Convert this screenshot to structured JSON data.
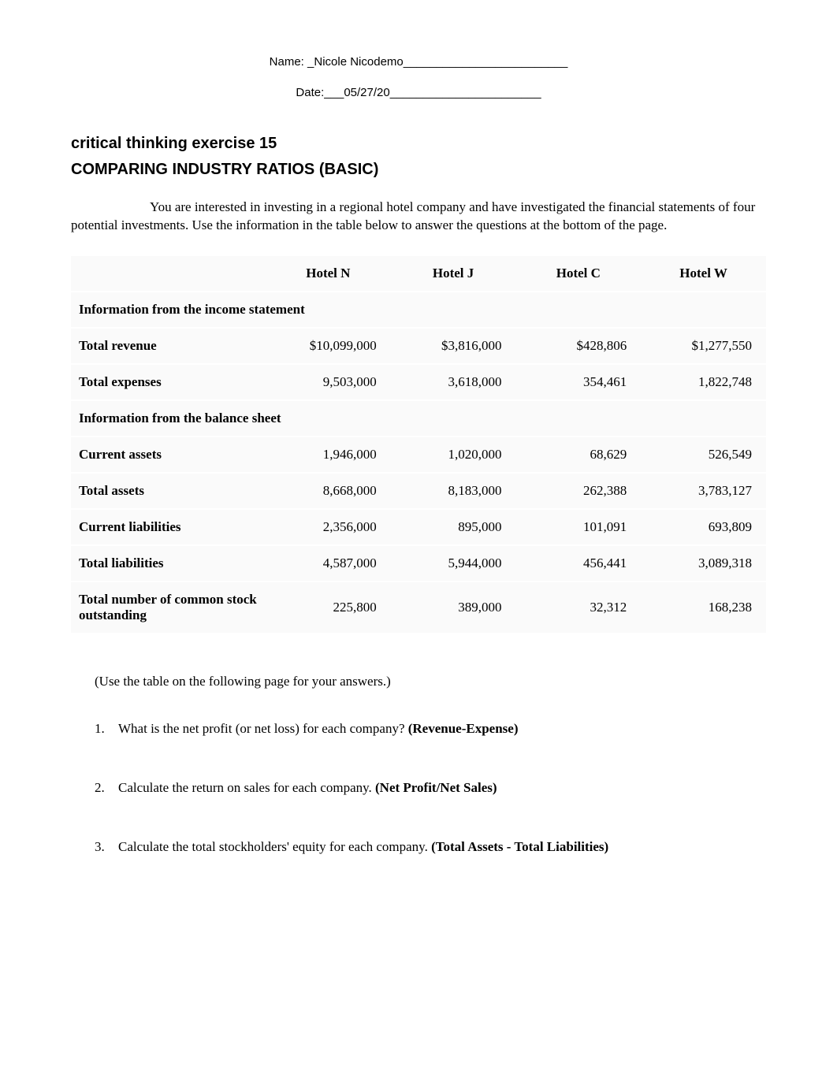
{
  "header": {
    "name_label": "Name: ",
    "name_value": "_Nicole Nicodemo_________________________",
    "date_label": "Date:___",
    "date_value": "05/27/20_______________________"
  },
  "title": {
    "line1": "critical thinking exercise 15",
    "line2": "COMPARING INDUSTRY RATIOS (BASIC)"
  },
  "intro": "You are interested in investing in a regional hotel company and have investigated the financial statements of four potential investments. Use the information in the table below to answer the questions at the bottom of the page.",
  "table": {
    "columns": [
      "Hotel N",
      "Hotel J",
      "Hotel C",
      "Hotel W"
    ],
    "section1_header": "Information from the income statement",
    "section2_header": "Information from the balance sheet",
    "rows": [
      {
        "label": "Total revenue",
        "values": [
          "$10,099,000",
          "$3,816,000",
          "$428,806",
          "$1,277,550"
        ]
      },
      {
        "label": "Total expenses",
        "values": [
          "9,503,000",
          "3,618,000",
          "354,461",
          "1,822,748"
        ]
      }
    ],
    "rows2": [
      {
        "label": "Current assets",
        "values": [
          "1,946,000",
          "1,020,000",
          "68,629",
          "526,549"
        ]
      },
      {
        "label": "Total assets",
        "values": [
          "8,668,000",
          "8,183,000",
          "262,388",
          "3,783,127"
        ]
      },
      {
        "label": "Current liabilities",
        "values": [
          "2,356,000",
          "895,000",
          "101,091",
          "693,809"
        ]
      },
      {
        "label": "Total liabilities",
        "values": [
          "4,587,000",
          "5,944,000",
          "456,441",
          "3,089,318"
        ]
      },
      {
        "label": "Total number of common stock outstanding",
        "values": [
          "225,800",
          "389,000",
          "32,312",
          "168,238"
        ]
      }
    ],
    "background_color": "#fafafa",
    "border_color": "#ffffff",
    "label_fontsize": 17,
    "header_fontweight": "bold"
  },
  "note": "(Use the table on the following page for your answers.)",
  "questions": [
    {
      "num": "1.",
      "text": "What is the net profit (or net loss) for each company? ",
      "bold": "(Revenue-Expense)"
    },
    {
      "num": "2.",
      "text": "Calculate the return on sales for each company. ",
      "bold": "(Net Profit/Net Sales)"
    },
    {
      "num": "3.",
      "text": "Calculate the total stockholders' equity for each company. ",
      "bold": "(Total Assets - Total Liabilities)"
    }
  ]
}
